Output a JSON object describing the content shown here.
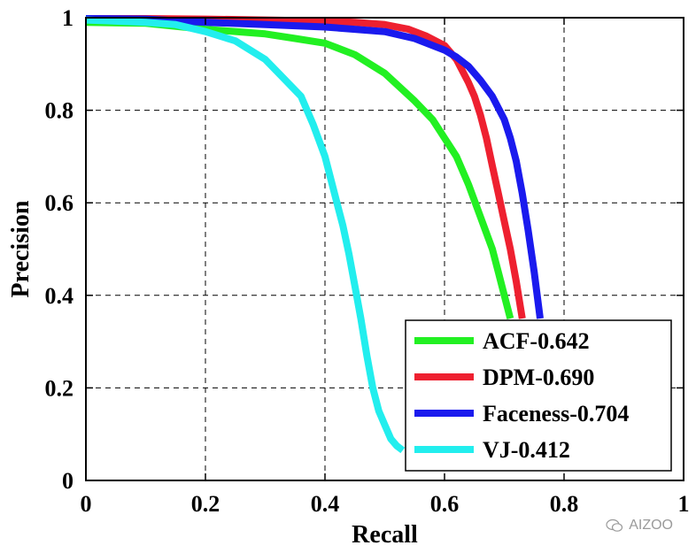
{
  "chart_data": {
    "type": "line",
    "xlabel": "Recall",
    "ylabel": "Precision",
    "xlim": [
      0,
      1
    ],
    "ylim": [
      0,
      1
    ],
    "xticks": [
      "0",
      "0.2",
      "0.4",
      "0.6",
      "0.8",
      "1"
    ],
    "yticks": [
      "0",
      "0.2",
      "0.4",
      "0.6",
      "0.8",
      "1"
    ],
    "grid": true,
    "legend_position": "bottom-right",
    "series": [
      {
        "name": "ACF-0.642",
        "color": "#22f022",
        "x": [
          0,
          0.1,
          0.2,
          0.3,
          0.35,
          0.4,
          0.45,
          0.5,
          0.55,
          0.58,
          0.6,
          0.62,
          0.64,
          0.66,
          0.68,
          0.69,
          0.7,
          0.71
        ],
        "y": [
          0.99,
          0.988,
          0.975,
          0.965,
          0.955,
          0.945,
          0.92,
          0.88,
          0.82,
          0.78,
          0.74,
          0.7,
          0.64,
          0.57,
          0.5,
          0.45,
          0.4,
          0.35
        ]
      },
      {
        "name": "DPM-0.690",
        "color": "#ee2030",
        "x": [
          0,
          0.1,
          0.2,
          0.3,
          0.4,
          0.45,
          0.5,
          0.54,
          0.57,
          0.6,
          0.62,
          0.64,
          0.65,
          0.66,
          0.67,
          0.68,
          0.69,
          0.7,
          0.71,
          0.72,
          0.73
        ],
        "y": [
          0.998,
          0.998,
          0.997,
          0.995,
          0.993,
          0.99,
          0.985,
          0.975,
          0.96,
          0.94,
          0.91,
          0.86,
          0.83,
          0.79,
          0.74,
          0.68,
          0.62,
          0.56,
          0.5,
          0.43,
          0.35
        ]
      },
      {
        "name": "Faceness-0.704",
        "color": "#1a1aee",
        "x": [
          0,
          0.1,
          0.2,
          0.3,
          0.4,
          0.45,
          0.5,
          0.55,
          0.58,
          0.6,
          0.62,
          0.64,
          0.66,
          0.68,
          0.7,
          0.71,
          0.72,
          0.73,
          0.74,
          0.75,
          0.76
        ],
        "y": [
          0.998,
          0.997,
          0.99,
          0.985,
          0.98,
          0.975,
          0.97,
          0.955,
          0.94,
          0.93,
          0.915,
          0.895,
          0.865,
          0.83,
          0.78,
          0.74,
          0.69,
          0.62,
          0.54,
          0.45,
          0.35
        ]
      },
      {
        "name": "VJ-0.412",
        "color": "#22eeee",
        "x": [
          0,
          0.1,
          0.15,
          0.2,
          0.25,
          0.3,
          0.33,
          0.36,
          0.38,
          0.4,
          0.42,
          0.43,
          0.44,
          0.45,
          0.46,
          0.47,
          0.48,
          0.49,
          0.5,
          0.51,
          0.52,
          0.53
        ],
        "y": [
          0.995,
          0.99,
          0.985,
          0.97,
          0.95,
          0.91,
          0.87,
          0.83,
          0.77,
          0.7,
          0.6,
          0.55,
          0.49,
          0.42,
          0.35,
          0.27,
          0.2,
          0.15,
          0.12,
          0.09,
          0.075,
          0.065
        ]
      }
    ]
  },
  "watermark": {
    "text": "AIZOO",
    "icon": "wechat-icon"
  }
}
